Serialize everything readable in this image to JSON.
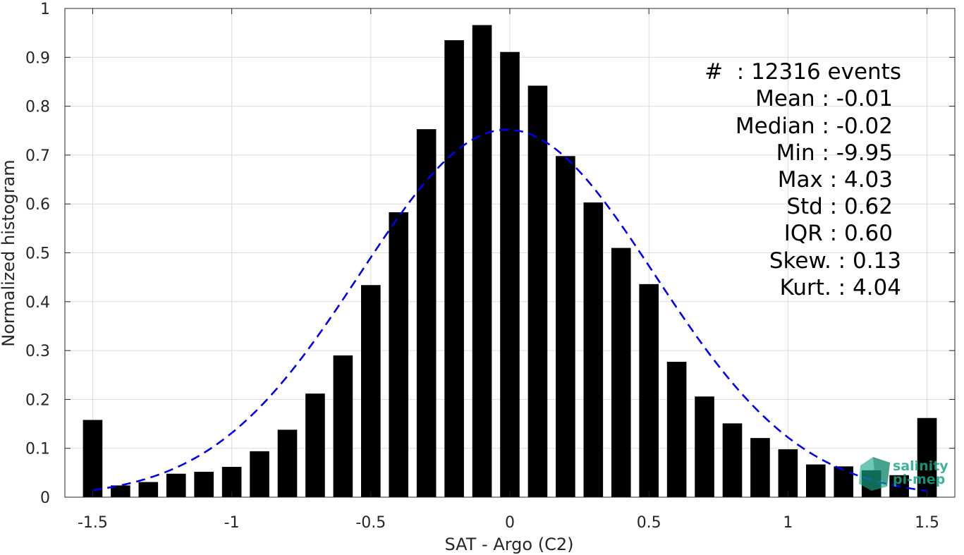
{
  "chart_data": {
    "type": "bar",
    "xlabel": "SAT - Argo (C2)",
    "ylabel": "Normalized histogram",
    "xlim": [
      -1.6,
      1.6
    ],
    "ylim": [
      0,
      1
    ],
    "grid": true,
    "xticks": [
      -1.5,
      -1,
      -0.5,
      0,
      0.5,
      1,
      1.5
    ],
    "xtick_labels": [
      "-1.5",
      "-1",
      "-0.5",
      "0",
      "0.5",
      "1",
      "1.5"
    ],
    "yticks": [
      0,
      0.1,
      0.2,
      0.3,
      0.4,
      0.5,
      0.6,
      0.7,
      0.8,
      0.9,
      1
    ],
    "ytick_labels": [
      "0",
      "0.1",
      "0.2",
      "0.3",
      "0.4",
      "0.5",
      "0.6",
      "0.7",
      "0.8",
      "0.9",
      "1"
    ],
    "bar_width": 0.07,
    "bar_color": "#000000",
    "x": [
      -1.5,
      -1.4,
      -1.3,
      -1.2,
      -1.1,
      -1.0,
      -0.9,
      -0.8,
      -0.7,
      -0.6,
      -0.5,
      -0.4,
      -0.3,
      -0.2,
      -0.1,
      0.0,
      0.1,
      0.2,
      0.3,
      0.4,
      0.5,
      0.6,
      0.7,
      0.8,
      0.9,
      1.0,
      1.1,
      1.2,
      1.3,
      1.4,
      1.5
    ],
    "values": [
      0.158,
      0.024,
      0.031,
      0.048,
      0.052,
      0.062,
      0.094,
      0.138,
      0.212,
      0.29,
      0.434,
      0.583,
      0.753,
      0.935,
      0.966,
      0.911,
      0.842,
      0.698,
      0.603,
      0.51,
      0.436,
      0.277,
      0.206,
      0.151,
      0.121,
      0.098,
      0.067,
      0.063,
      0.055,
      0.045,
      0.162
    ],
    "fit_curve": {
      "style": "dashed",
      "color": "#0000ee",
      "peak": 0.752,
      "mean": -0.01,
      "std": 0.53,
      "x_range": [
        -1.5,
        1.5
      ]
    },
    "annotations": [
      "#  : 12316 events",
      "Mean : -0.01",
      "Median : -0.02",
      "Min : -9.95",
      "Max : 4.03",
      "Std : 0.62",
      "IQR : 0.60",
      "Skew. : 0.13",
      "Kurt. : 4.04"
    ]
  },
  "logo": {
    "line1": "salinity",
    "line2": "pi-mep",
    "color": "#1aa88a"
  }
}
